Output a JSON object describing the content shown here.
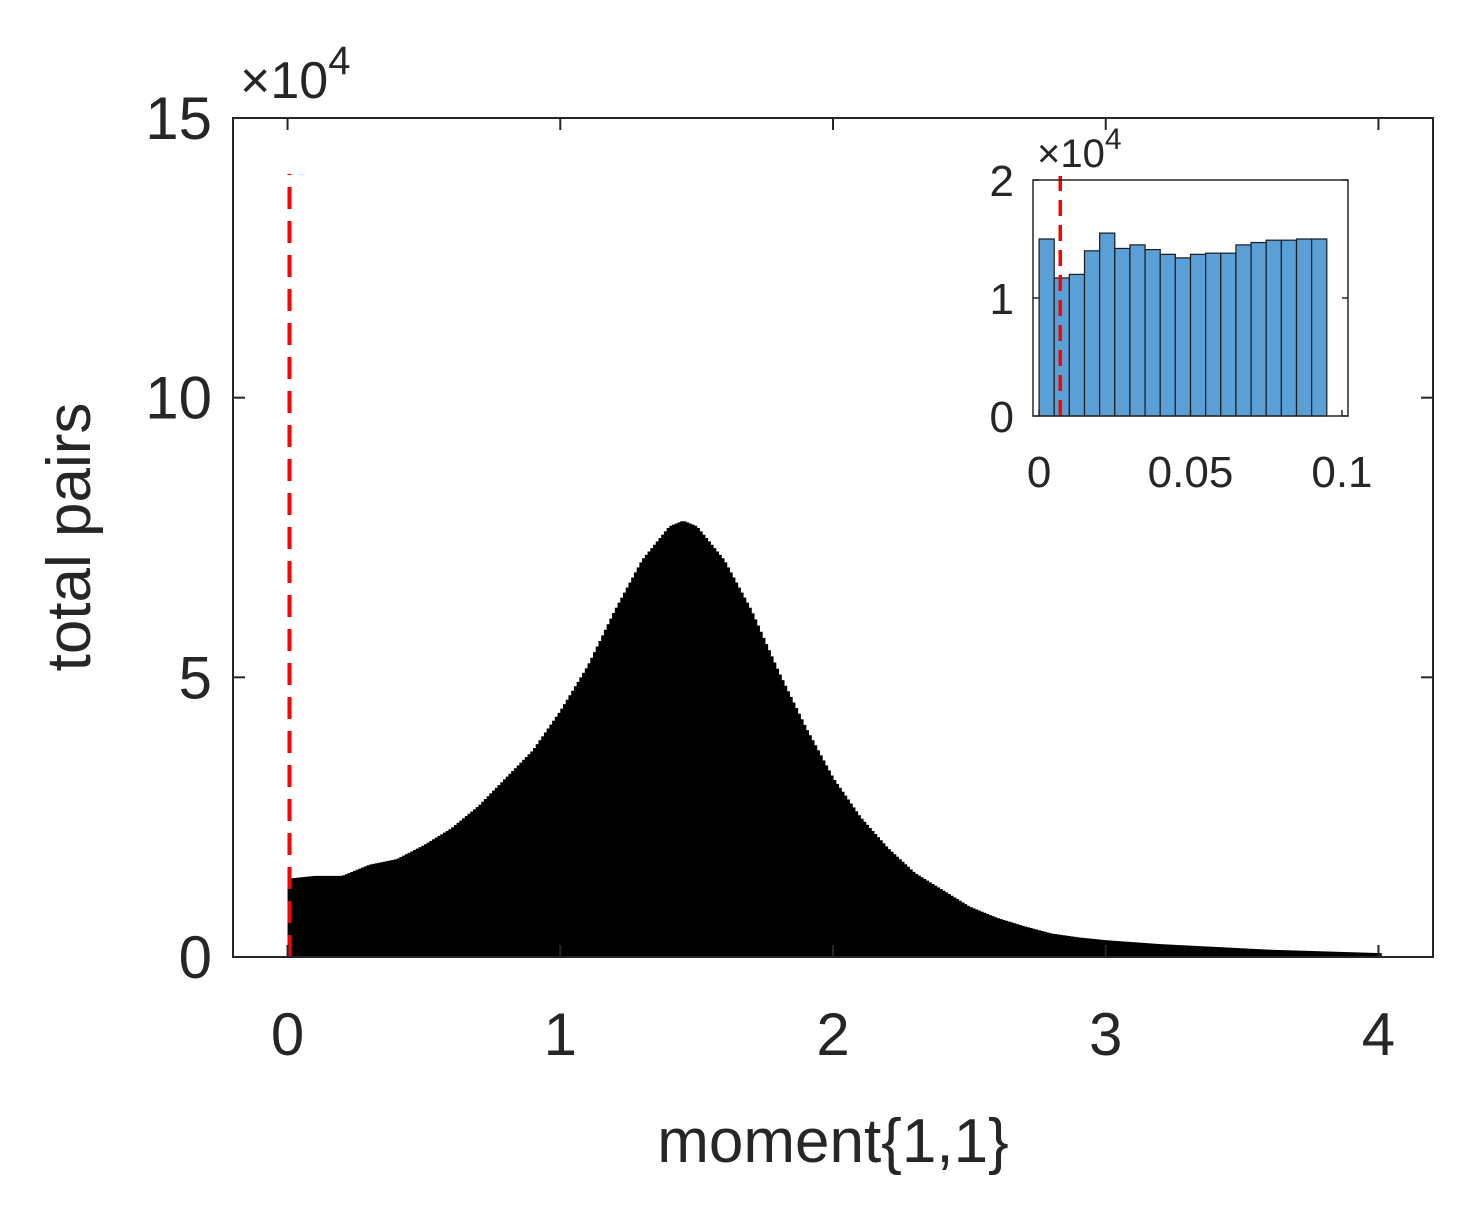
{
  "chart_data": [
    {
      "type": "bar",
      "role": "main-histogram",
      "xlabel": "moment{1,1}",
      "ylabel": "total pairs",
      "xlim": [
        -0.2,
        4.2
      ],
      "ylim": [
        0,
        150000
      ],
      "x_ticks": [
        "0",
        "1",
        "2",
        "3",
        "4"
      ],
      "y_ticks": [
        "0",
        "5",
        "10",
        "15"
      ],
      "y_multiplier": "×10",
      "y_multiplier_exponent": "4",
      "bar_color": "#000000",
      "grid": false,
      "series": [
        {
          "x": [
            0.0,
            0.1,
            0.2,
            0.3,
            0.4,
            0.5,
            0.6,
            0.7,
            0.8,
            0.9,
            1.0,
            1.1,
            1.2,
            1.3,
            1.4,
            1.45,
            1.5,
            1.6,
            1.7,
            1.8,
            1.9,
            2.0,
            2.1,
            2.2,
            2.3,
            2.4,
            2.5,
            2.6,
            2.7,
            2.8,
            2.9,
            3.0,
            3.2,
            3.4,
            3.6,
            3.8,
            4.0
          ],
          "values": [
            14000,
            14500,
            14500,
            16500,
            17500,
            20000,
            23000,
            27000,
            32000,
            37000,
            44000,
            52000,
            62000,
            71000,
            77000,
            78000,
            77000,
            71000,
            62000,
            51000,
            41000,
            32000,
            25000,
            19500,
            15000,
            12000,
            9000,
            7000,
            5500,
            4200,
            3500,
            3000,
            2300,
            1800,
            1300,
            1000,
            700
          ]
        }
      ],
      "reference_line": {
        "x": 0.007,
        "color": "#ff0000",
        "style": "dashed",
        "y_top": 140000
      }
    },
    {
      "type": "bar",
      "role": "inset-histogram",
      "xlim": [
        -0.002,
        0.102
      ],
      "ylim": [
        0,
        20000
      ],
      "x_ticks": [
        "0",
        "0.05",
        "0.1"
      ],
      "y_ticks": [
        "0",
        "1",
        "2"
      ],
      "y_multiplier": "×10",
      "y_multiplier_exponent": "4",
      "bar_color": "#5aa0d6",
      "bin_width": 0.005,
      "series": [
        {
          "x": [
            0.0025,
            0.0075,
            0.0125,
            0.0175,
            0.0225,
            0.0275,
            0.0325,
            0.0375,
            0.0425,
            0.0475,
            0.0525,
            0.0575,
            0.0625,
            0.0675,
            0.0725,
            0.0775,
            0.0825,
            0.0875,
            0.0925
          ],
          "values": [
            15000,
            11700,
            12000,
            14000,
            15500,
            14200,
            14500,
            14100,
            13700,
            13400,
            13700,
            13800,
            13800,
            14500,
            14700,
            14900,
            14900,
            15000,
            15000
          ]
        }
      ],
      "reference_line": {
        "x": 0.007,
        "color": "#ff0000",
        "style": "dashed"
      }
    }
  ]
}
